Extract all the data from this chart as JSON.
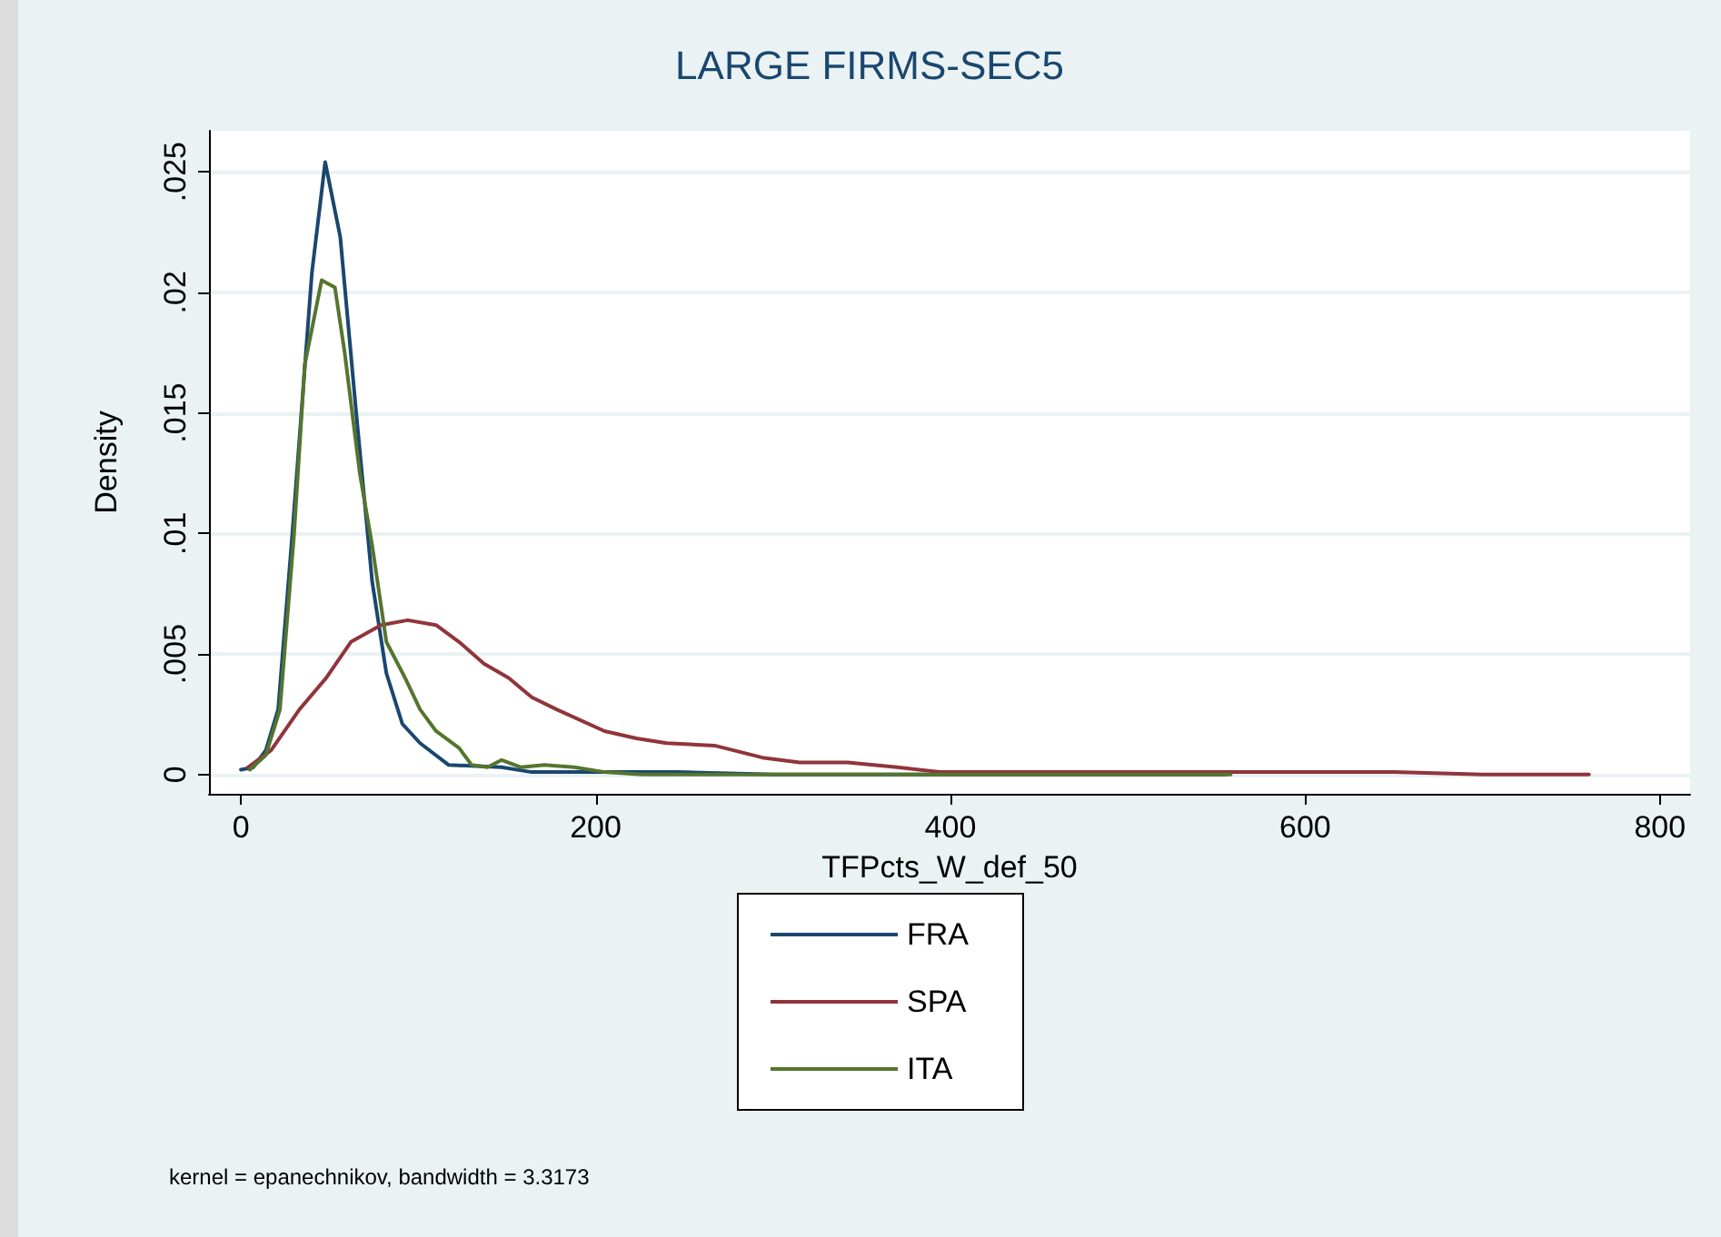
{
  "chart_data": {
    "type": "line",
    "title": "LARGE FIRMS-SEC5",
    "xlabel": "TFPcts_W_def_50",
    "ylabel": "Density",
    "annotations": [
      "kernel = epanechnikov, bandwidth = 3.3173"
    ],
    "xlim": [
      -18,
      817
    ],
    "xticks": [
      0,
      200,
      400,
      600,
      800
    ],
    "ylim": [
      -0.0008,
      0.0267
    ],
    "yticks": [
      0,
      {
        "value": 0.005,
        "label": ".005"
      },
      {
        "value": 0.01,
        "label": ".01"
      },
      {
        "value": 0.015,
        "label": ".015"
      },
      {
        "value": 0.02,
        "label": ".02"
      },
      {
        "value": 0.025,
        "label": ".025"
      }
    ],
    "grid": "y",
    "legend": "bottom",
    "line_style": "solid",
    "marker": "none",
    "series": [
      {
        "name": "FRA",
        "color": "#1a476f",
        "x": [
          0,
          7,
          14,
          21,
          29,
          40,
          47.5,
          56,
          65,
          74,
          82,
          91,
          101,
          117,
          147,
          164,
          200,
          246,
          300,
          400,
          555
        ],
        "values": [
          0.0002,
          0.0003,
          0.001,
          0.0027,
          0.01,
          0.0208,
          0.0254,
          0.0223,
          0.015,
          0.008,
          0.0042,
          0.0021,
          0.0013,
          0.0004,
          0.0003,
          0.0001,
          0.0001,
          0.0001,
          0,
          0,
          0
        ]
      },
      {
        "name": "SPA",
        "color": "#90353b",
        "x": [
          4,
          17,
          33,
          48,
          62,
          79,
          94,
          110,
          123,
          137,
          151,
          164,
          178,
          205,
          223,
          240,
          267,
          294,
          315,
          342,
          370,
          394,
          450,
          550,
          650,
          700,
          760
        ],
        "values": [
          0.0003,
          0.001,
          0.0027,
          0.004,
          0.0055,
          0.0062,
          0.0064,
          0.0062,
          0.0055,
          0.0046,
          0.004,
          0.0032,
          0.0027,
          0.0018,
          0.0015,
          0.0013,
          0.0012,
          0.0007,
          0.0005,
          0.0005,
          0.0003,
          0.0001,
          0.0001,
          0.0001,
          0.0001,
          0,
          0
        ]
      },
      {
        "name": "ITA",
        "color": "#55752f",
        "x": [
          5,
          14,
          22,
          30,
          36,
          45.5,
          53,
          58.5,
          67,
          74,
          82,
          92.6,
          101,
          110,
          123,
          130,
          139,
          147,
          158,
          171,
          188,
          205,
          226,
          300,
          400,
          558
        ],
        "values": [
          0.0002,
          0.0008,
          0.0027,
          0.01,
          0.017,
          0.0205,
          0.0202,
          0.0175,
          0.0125,
          0.0095,
          0.0055,
          0.004,
          0.0027,
          0.0018,
          0.0011,
          0.0004,
          0.0003,
          0.0006,
          0.0003,
          0.0004,
          0.0003,
          0.0001,
          0,
          0,
          0,
          0
        ]
      }
    ]
  }
}
